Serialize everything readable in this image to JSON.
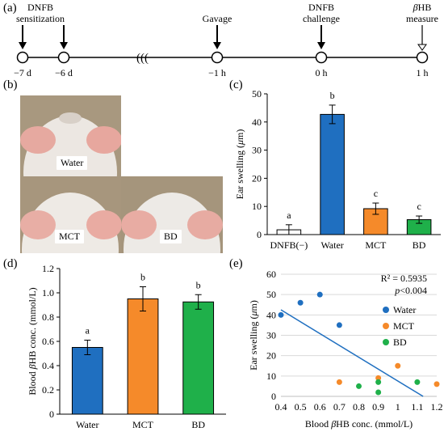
{
  "figure": {
    "panel_labels": [
      "(a)",
      "(b)",
      "(c)",
      "(d)",
      "(e)"
    ]
  },
  "timeline": {
    "events": [
      {
        "label": "DNFB\nsensitization",
        "time": "−7 d"
      },
      {
        "label": "",
        "time": "−6 d"
      },
      {
        "label": "Gavage",
        "time": "−1 h"
      },
      {
        "label": "DNFB\nchallenge",
        "time": "0 h"
      },
      {
        "label": "βHB\nmeasure",
        "time": "1 h"
      }
    ],
    "break_symbol": "((("
  },
  "photos": {
    "labels": [
      "Water",
      "MCT",
      "BD"
    ]
  },
  "chart_data": [
    {
      "id": "c",
      "type": "bar",
      "categories": [
        "DNFB(−)",
        "Water",
        "MCT",
        "BD"
      ],
      "values": [
        1.7,
        42.7,
        9.2,
        5.3
      ],
      "errors": [
        1.8,
        3.3,
        2.0,
        1.3
      ],
      "letters": [
        "a",
        "b",
        "c",
        "c"
      ],
      "colors": [
        "#ffffff",
        "#1f6fc0",
        "#f58a2a",
        "#1fb04a"
      ],
      "ylabel": "Ear swelling (μm)",
      "ylim": [
        0,
        50
      ],
      "yticks": [
        0,
        10,
        20,
        30,
        40,
        50
      ]
    },
    {
      "id": "d",
      "type": "bar",
      "categories": [
        "Water",
        "MCT",
        "BD"
      ],
      "values": [
        0.55,
        0.95,
        0.925
      ],
      "errors": [
        0.06,
        0.1,
        0.06
      ],
      "letters": [
        "a",
        "b",
        "b"
      ],
      "colors": [
        "#1f6fc0",
        "#f58a2a",
        "#1fb04a"
      ],
      "ylabel": "Blood βHB conc. (mmol/L)",
      "ylim": [
        0,
        1.2
      ],
      "yticks": [
        "0",
        "0.2",
        "0.4",
        "0.6",
        "0.8",
        "1.0",
        "1.2"
      ]
    },
    {
      "id": "e",
      "type": "scatter",
      "xlabel": "Blood βHB conc. (mmol/L)",
      "ylabel": "Ear swelling (μm)",
      "xlim": [
        0.4,
        1.2
      ],
      "ylim": [
        0,
        60
      ],
      "xticks": [
        "0.4",
        "0.5",
        "0.6",
        "0.7",
        "0.8",
        "0.9",
        "1",
        "1.1",
        "1.2"
      ],
      "yticks": [
        "0",
        "10",
        "20",
        "30",
        "40",
        "50",
        "60"
      ],
      "grid": true,
      "legend_position": "right",
      "series": [
        {
          "name": "Water",
          "color": "#1f6fc0",
          "points": [
            [
              0.4,
              40
            ],
            [
              0.5,
              46
            ],
            [
              0.6,
              50
            ],
            [
              0.7,
              35
            ]
          ]
        },
        {
          "name": "MCT",
          "color": "#f58a2a",
          "points": [
            [
              0.7,
              7
            ],
            [
              0.9,
              9
            ],
            [
              1.0,
              15
            ],
            [
              1.2,
              6
            ]
          ]
        },
        {
          "name": "BD",
          "color": "#1fb04a",
          "points": [
            [
              0.8,
              5
            ],
            [
              0.9,
              7
            ],
            [
              0.9,
              2
            ],
            [
              1.1,
              7
            ]
          ]
        }
      ],
      "trendline": {
        "x1": 0.4,
        "y1": 42.5,
        "x2": 1.13,
        "y2": 0
      },
      "annotations": [
        "R² = 0.5935",
        "p<0.004"
      ]
    }
  ]
}
